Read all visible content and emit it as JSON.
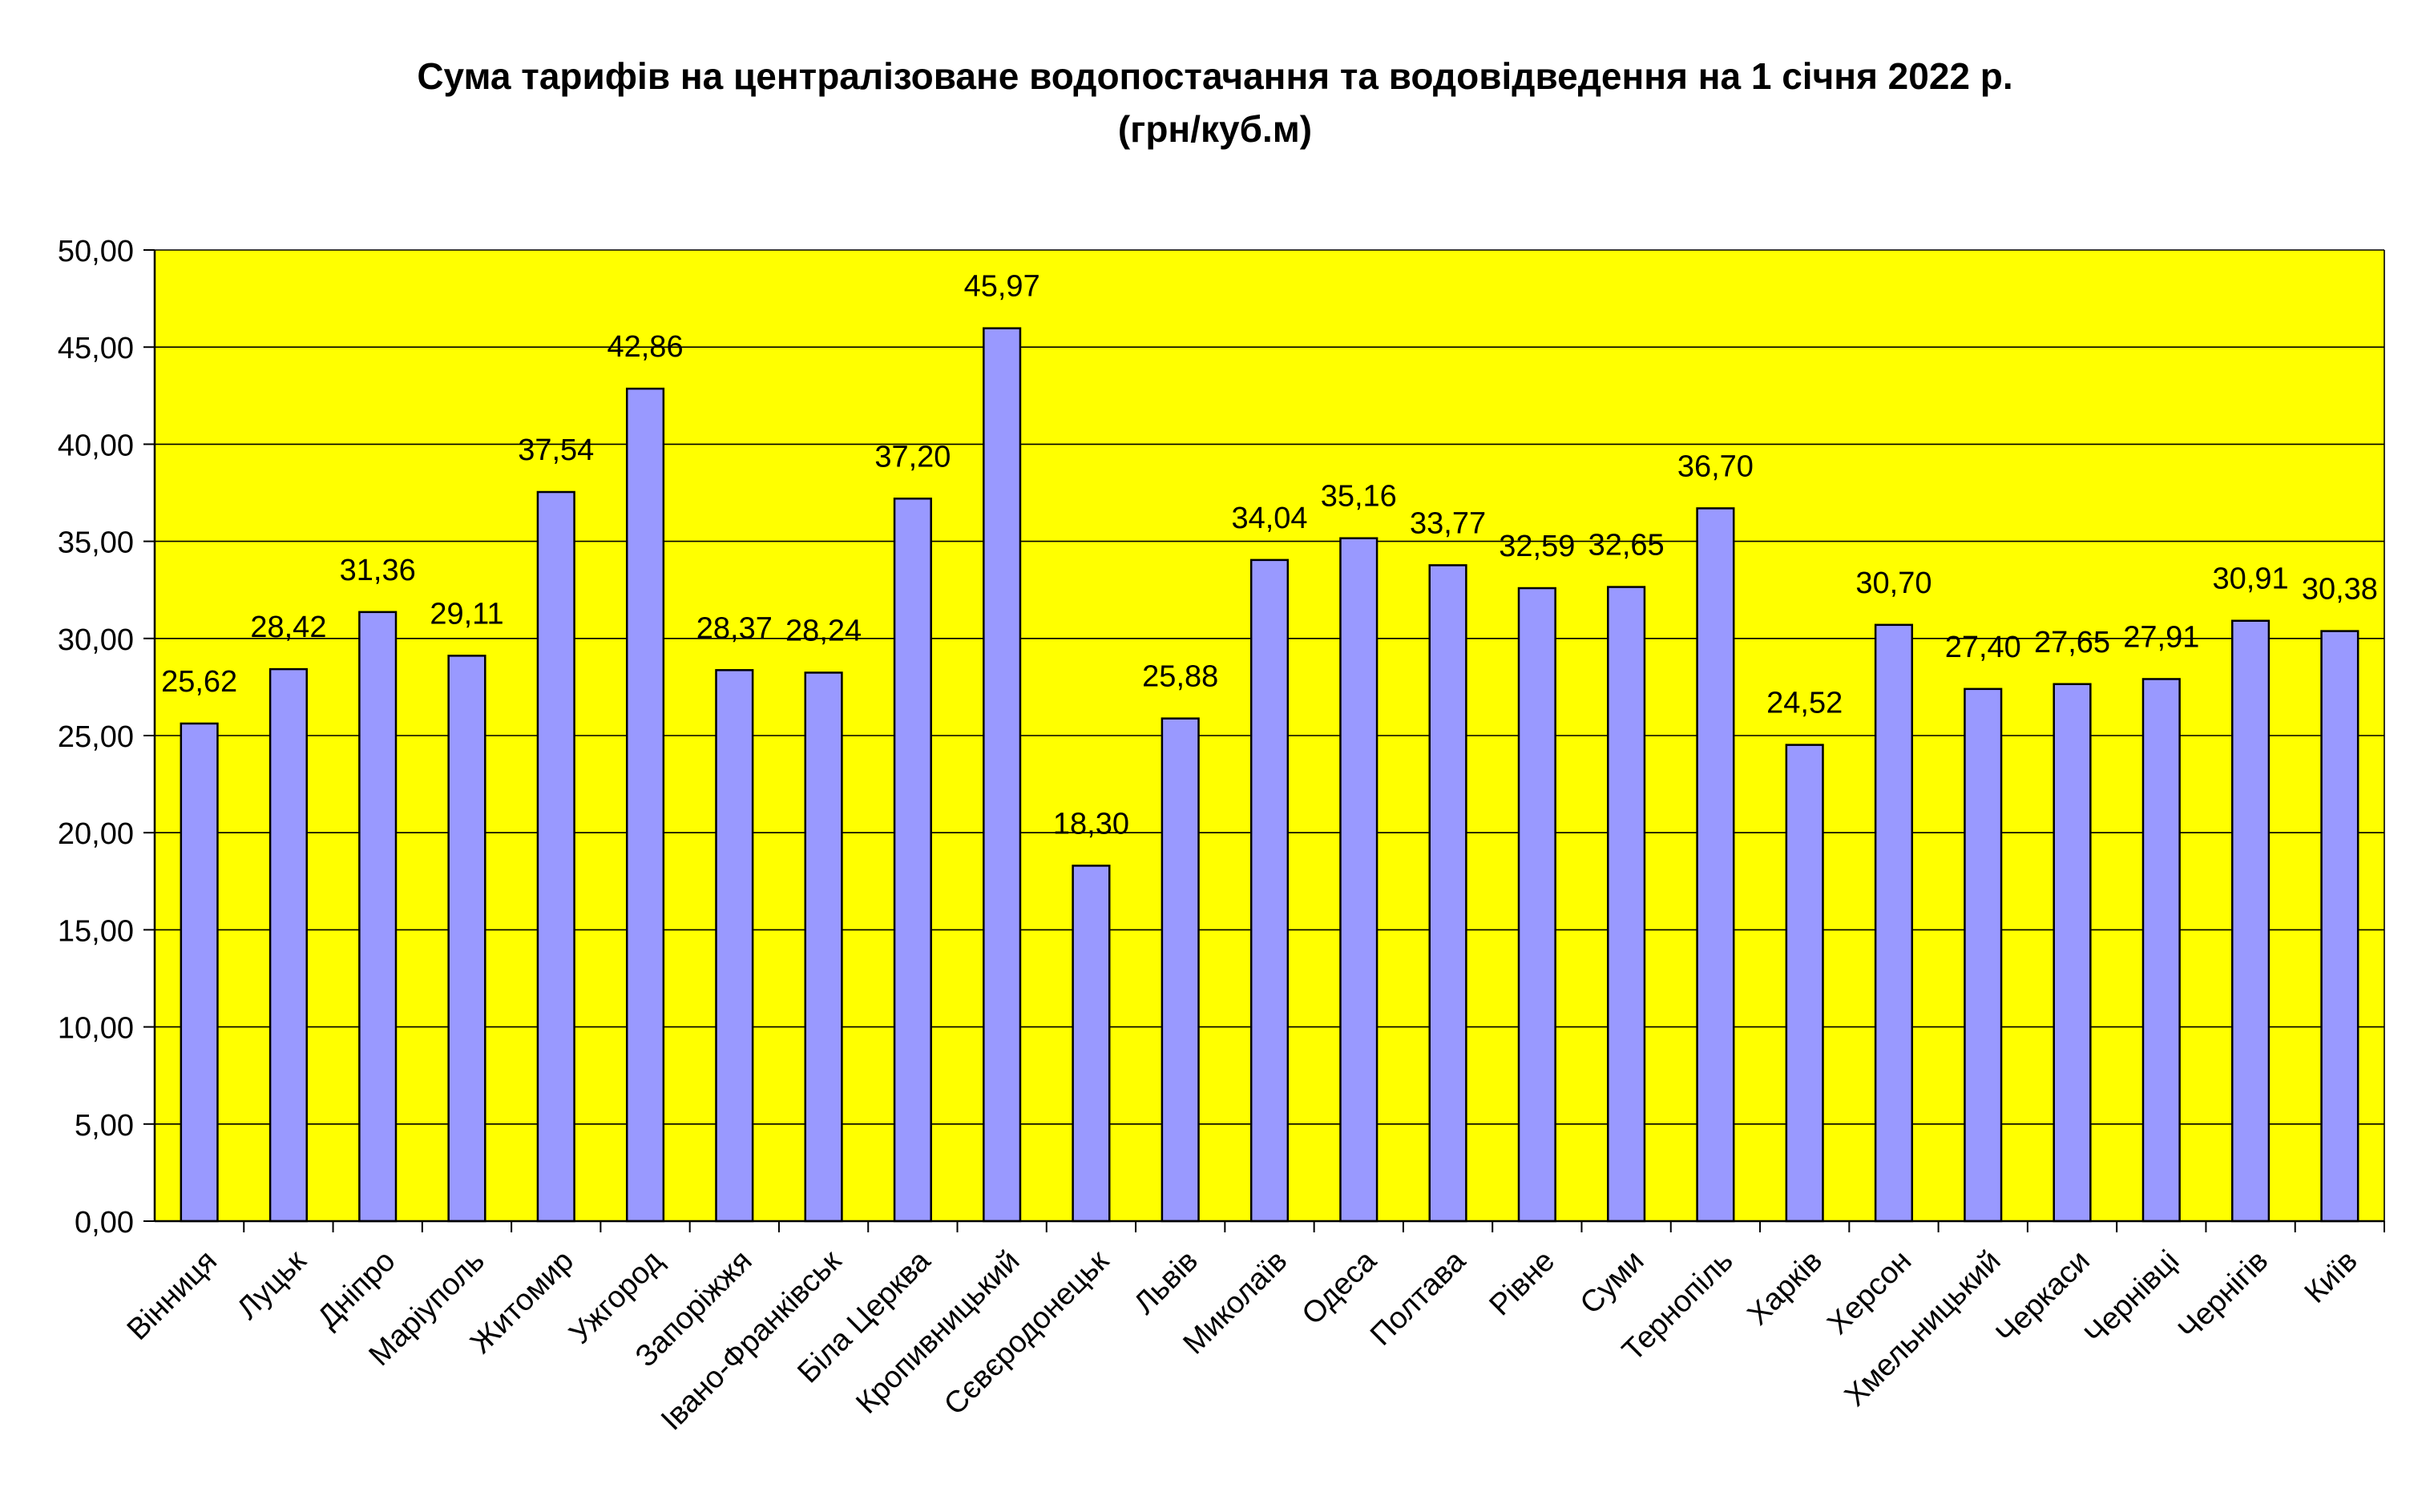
{
  "chart_data": {
    "type": "bar",
    "title": "Сума тарифів на централізоване водопостачання та водовідведення на 1 січня 2022 р.",
    "subtitle": "(грн/куб.м)",
    "xlabel": "",
    "ylabel": "",
    "ylim": [
      0,
      50
    ],
    "yticks": [
      0,
      5,
      10,
      15,
      20,
      25,
      30,
      35,
      40,
      45,
      50
    ],
    "ytick_labels": [
      "0,00",
      "5,00",
      "10,00",
      "15,00",
      "20,00",
      "25,00",
      "30,00",
      "35,00",
      "40,00",
      "45,00",
      "50,00"
    ],
    "grid": true,
    "legend": "none",
    "categories": [
      "Вінниця",
      "Луцьк",
      "Дніпро",
      "Маріуполь",
      "Житомир",
      "Ужгород",
      "Запоріжжя",
      "Івано-Франківськ",
      "Біла Церква",
      "Кропивницький",
      "Сєвєродонецьк",
      "Львів",
      "Миколаїв",
      "Одеса",
      "Полтава",
      "Рівне",
      "Суми",
      "Тернопіль",
      "Харків",
      "Херсон",
      "Хмельницький",
      "Черкаси",
      "Чернівці",
      "Чернігів",
      "Київ"
    ],
    "values": [
      25.62,
      28.42,
      31.36,
      29.11,
      37.54,
      42.86,
      28.37,
      28.24,
      37.2,
      45.97,
      18.3,
      25.88,
      34.04,
      35.16,
      33.77,
      32.59,
      32.65,
      36.7,
      24.52,
      30.7,
      27.4,
      27.65,
      27.91,
      30.91,
      30.38
    ],
    "value_labels": [
      "25,62",
      "28,42",
      "31,36",
      "29,11",
      "37,54",
      "42,86",
      "28,37",
      "28,24",
      "37,20",
      "45,97",
      "18,30",
      "25,88",
      "34,04",
      "35,16",
      "33,77",
      "32,59",
      "32,65",
      "36,70",
      "24,52",
      "30,70",
      "27,40",
      "27,65",
      "27,91",
      "30,91",
      "30,38"
    ],
    "colors": {
      "plot_background": "#ffff00",
      "bar_fill": "#9999ff",
      "bar_stroke": "#000000",
      "grid": "#000000",
      "axis": "#000000",
      "text": "#000000"
    }
  }
}
